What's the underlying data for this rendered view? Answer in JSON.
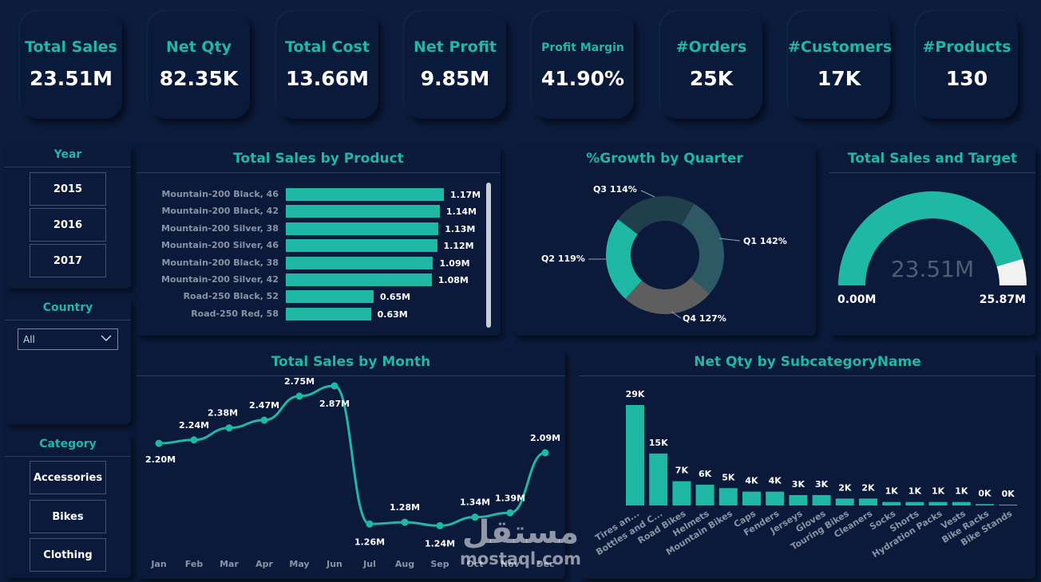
{
  "kpis": [
    {
      "label": "Total Sales",
      "value": "23.51M"
    },
    {
      "label": "Net Qty",
      "value": "82.35K"
    },
    {
      "label": "Total Cost",
      "value": "13.66M"
    },
    {
      "label": "Net Profit",
      "value": "9.85M"
    },
    {
      "label": "Profit Margin",
      "value": "41.90%"
    },
    {
      "label": "#Orders",
      "value": "25K"
    },
    {
      "label": "#Customers",
      "value": "17K"
    },
    {
      "label": "#Products",
      "value": "130"
    }
  ],
  "filters": {
    "year": {
      "title": "Year",
      "options": [
        "2015",
        "2016",
        "2017"
      ]
    },
    "country": {
      "title": "Country",
      "selected": "All"
    },
    "category": {
      "title": "Category",
      "options": [
        "Accessories",
        "Bikes",
        "Clothing"
      ]
    }
  },
  "colors": {
    "accent": "#1fb8a4",
    "background": "#0c1c3e"
  },
  "watermark": {
    "arabic": "مستقل",
    "latin": "mostaql.com"
  },
  "chart_data": [
    {
      "id": "sales_by_product",
      "type": "bar",
      "orientation": "horizontal",
      "title": "Total Sales by Product",
      "categories": [
        "Mountain-200 Black, 46",
        "Mountain-200 Black, 42",
        "Mountain-200 Silver, 38",
        "Mountain-200 Silver, 46",
        "Mountain-200 Black, 38",
        "Mountain-200 Silver, 42",
        "Road-250 Black, 52",
        "Road-250 Red, 58"
      ],
      "values": [
        1.17,
        1.14,
        1.13,
        1.12,
        1.09,
        1.08,
        0.65,
        0.63
      ],
      "data_labels": [
        "1.17M",
        "1.14M",
        "1.13M",
        "1.12M",
        "1.09M",
        "1.08M",
        "0.65M",
        "0.63M"
      ],
      "unit": "M"
    },
    {
      "id": "growth_by_quarter",
      "type": "pie",
      "style": "donut",
      "title": "%Growth by Quarter",
      "categories": [
        "Q1",
        "Q4",
        "Q2",
        "Q3"
      ],
      "values": [
        142,
        127,
        119,
        114
      ],
      "data_labels": [
        "Q1 142%",
        "Q4 127%",
        "Q2 119%",
        "Q3 114%"
      ],
      "colors": [
        "#2e5864",
        "#5e5e5e",
        "#1fb8a4",
        "#1f3f4a"
      ]
    },
    {
      "id": "sales_and_target",
      "type": "gauge",
      "title": "Total Sales and Target",
      "value": 23.51,
      "min": 0,
      "max": 25.87,
      "value_label": "23.51M",
      "min_label": "0.00M",
      "max_label": "25.87M"
    },
    {
      "id": "sales_by_month",
      "type": "line",
      "title": "Total Sales by Month",
      "categories": [
        "Jan",
        "Feb",
        "Mar",
        "Apr",
        "May",
        "Jun",
        "Jul",
        "Aug",
        "Sep",
        "Oct",
        "Nov",
        "Dec"
      ],
      "values": [
        2.2,
        2.24,
        2.38,
        2.47,
        2.75,
        2.87,
        1.26,
        1.28,
        1.24,
        1.34,
        1.39,
        2.09
      ],
      "data_labels": [
        "2.20M",
        "2.24M",
        "2.38M",
        "2.47M",
        "2.75M",
        "2.87M",
        "1.26M",
        "1.28M",
        "1.24M",
        "1.34M",
        "1.39M",
        "2.09M"
      ],
      "ylim": [
        0.9,
        3.0
      ]
    },
    {
      "id": "qty_by_subcategory",
      "type": "bar",
      "title": "Net Qty by SubcategoryName",
      "categories": [
        "Tires an...",
        "Bottles and C...",
        "Road Bikes",
        "Helmets",
        "Mountain Bikes",
        "Caps",
        "Fenders",
        "Jerseys",
        "Gloves",
        "Touring Bikes",
        "Cleaners",
        "Socks",
        "Shorts",
        "Hydration Packs",
        "Vests",
        "Bike Racks",
        "Bike Stands"
      ],
      "values": [
        29,
        15,
        7,
        6,
        5,
        4,
        4,
        3,
        3,
        2,
        2,
        1,
        1,
        1,
        1,
        0.4,
        0.25
      ],
      "data_labels": [
        "29K",
        "15K",
        "7K",
        "6K",
        "5K",
        "4K",
        "4K",
        "3K",
        "3K",
        "2K",
        "2K",
        "1K",
        "1K",
        "1K",
        "1K",
        "0K",
        "0K"
      ],
      "unit": "K"
    }
  ]
}
